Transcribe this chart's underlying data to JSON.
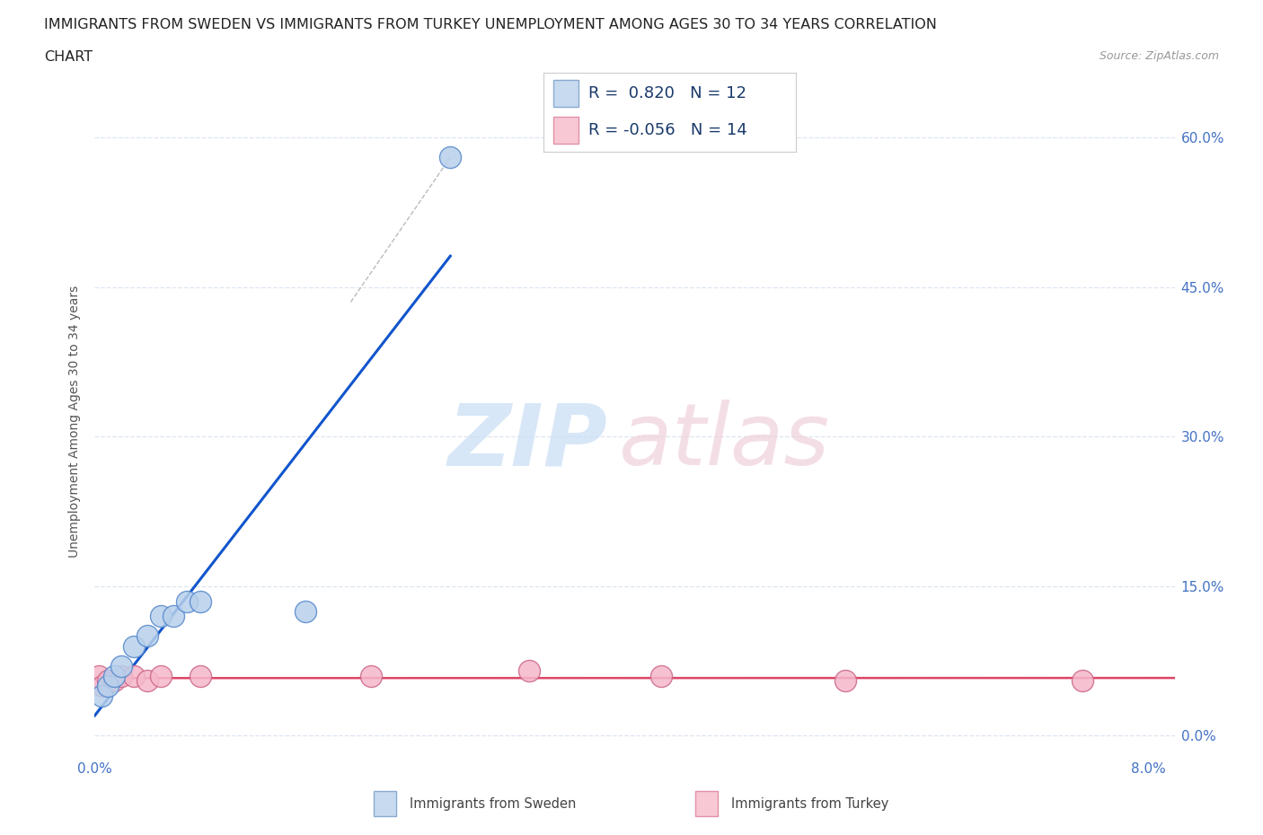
{
  "title_line1": "IMMIGRANTS FROM SWEDEN VS IMMIGRANTS FROM TURKEY UNEMPLOYMENT AMONG AGES 30 TO 34 YEARS CORRELATION",
  "title_line2": "CHART",
  "source_text": "Source: ZipAtlas.com",
  "ylabel": "Unemployment Among Ages 30 to 34 years",
  "xlim": [
    0.0,
    0.082
  ],
  "ylim": [
    -0.02,
    0.65
  ],
  "yticks": [
    0.0,
    0.15,
    0.3,
    0.45,
    0.6
  ],
  "ytick_labels": [
    "0.0%",
    "15.0%",
    "30.0%",
    "45.0%",
    "60.0%"
  ],
  "xtick_positions": [
    0.0,
    0.01,
    0.02,
    0.03,
    0.04,
    0.05,
    0.06,
    0.07,
    0.08
  ],
  "sweden_fill": "#b8d0eb",
  "sweden_edge": "#5588cc",
  "sweden_line": "#1155cc",
  "turkey_fill": "#f5b8cb",
  "turkey_edge": "#cc6688",
  "turkey_line": "#dd4466",
  "r_sweden": 0.82,
  "n_sweden": 12,
  "r_turkey": -0.056,
  "n_turkey": 14,
  "sweden_x": [
    0.0005,
    0.001,
    0.0015,
    0.002,
    0.003,
    0.004,
    0.005,
    0.006,
    0.007,
    0.008,
    0.016,
    0.027
  ],
  "sweden_y": [
    0.04,
    0.05,
    0.06,
    0.07,
    0.09,
    0.1,
    0.12,
    0.12,
    0.135,
    0.135,
    0.125,
    0.58
  ],
  "turkey_x": [
    0.0003,
    0.0006,
    0.001,
    0.0015,
    0.002,
    0.003,
    0.004,
    0.005,
    0.008,
    0.021,
    0.033,
    0.043,
    0.057,
    0.075
  ],
  "turkey_y": [
    0.06,
    0.05,
    0.055,
    0.055,
    0.06,
    0.06,
    0.055,
    0.06,
    0.06,
    0.06,
    0.065,
    0.06,
    0.055,
    0.055
  ],
  "background": "#ffffff",
  "grid_color": "#dde5f0",
  "axis_tick_color": "#4472c4",
  "ylabel_color": "#555555",
  "title_color": "#222222",
  "legend_sw_fill": "#c8daef",
  "legend_sw_edge": "#88aad0",
  "legend_tr_fill": "#f8c8d5",
  "legend_tr_edge": "#e090a8",
  "legend_text_color": "#1a3a6b",
  "source_color": "#999999",
  "watermark_zip_color": "#c8ddf5",
  "watermark_atlas_color": "#f0d0da"
}
